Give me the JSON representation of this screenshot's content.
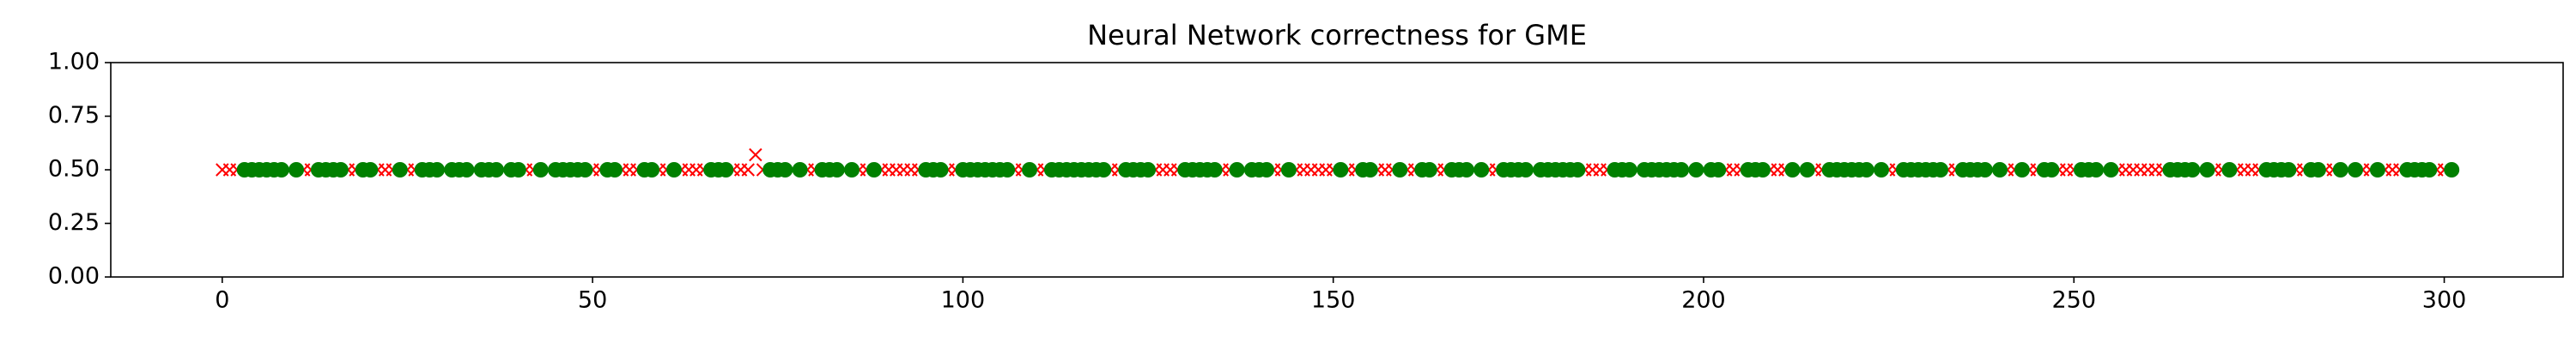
{
  "chart_data": {
    "type": "scatter",
    "title": "Neural Network correctness for GME",
    "xlim": [
      -15.05,
      316.05
    ],
    "ylim": [
      0,
      1
    ],
    "xticks": [
      0,
      50,
      100,
      150,
      200,
      250,
      300
    ],
    "yticks": [
      {
        "value": 0,
        "label": "0.00"
      },
      {
        "value": 0.25,
        "label": "0.25"
      },
      {
        "value": 0.5,
        "label": "0.50"
      },
      {
        "value": 0.75,
        "label": "0.75"
      },
      {
        "value": 1,
        "label": "1.00"
      }
    ],
    "grid": false,
    "series": [
      {
        "color": "red",
        "marker": "x",
        "x": [
          0,
          1,
          2,
          9,
          11,
          12,
          17,
          18,
          21,
          22,
          23,
          25,
          26,
          30,
          34,
          38,
          41,
          42,
          44,
          50,
          51,
          54,
          55,
          56,
          59,
          60,
          62,
          63,
          64,
          65,
          69,
          70,
          71,
          72,
          73,
          77,
          79,
          80,
          84,
          86,
          87,
          89,
          90,
          91,
          92,
          93,
          94,
          98,
          99,
          107,
          108,
          110,
          111,
          120,
          121,
          126,
          127,
          128,
          129,
          135,
          136,
          138,
          142,
          143,
          145,
          146,
          147,
          148,
          149,
          150,
          152,
          153,
          156,
          157,
          158,
          160,
          161,
          164,
          165,
          169,
          171,
          172,
          177,
          184,
          185,
          186,
          187,
          191,
          198,
          200,
          203,
          204,
          205,
          209,
          210,
          211,
          213,
          215,
          216,
          223,
          225,
          226,
          233,
          234,
          239,
          241,
          242,
          244,
          245,
          248,
          249,
          250,
          254,
          256,
          257,
          258,
          259,
          260,
          261,
          262,
          267,
          269,
          270,
          272,
          273,
          274,
          275,
          280,
          281,
          284,
          285,
          287,
          289,
          290,
          292,
          293,
          294,
          299,
          300
        ],
        "values": [
          0.5,
          0.5,
          0.5,
          0.5,
          0.5,
          0.5,
          0.5,
          0.5,
          0.5,
          0.5,
          0.5,
          0.5,
          0.5,
          0.5,
          0.5,
          0.5,
          0.5,
          0.5,
          0.5,
          0.5,
          0.5,
          0.5,
          0.5,
          0.5,
          0.5,
          0.5,
          0.5,
          0.5,
          0.5,
          0.5,
          0.5,
          0.5,
          0.5,
          0.57,
          0.5,
          0.5,
          0.5,
          0.5,
          0.5,
          0.5,
          0.5,
          0.5,
          0.5,
          0.5,
          0.5,
          0.5,
          0.5,
          0.5,
          0.5,
          0.5,
          0.5,
          0.5,
          0.5,
          0.5,
          0.5,
          0.5,
          0.5,
          0.5,
          0.5,
          0.5,
          0.5,
          0.5,
          0.5,
          0.5,
          0.5,
          0.5,
          0.5,
          0.5,
          0.5,
          0.5,
          0.5,
          0.5,
          0.5,
          0.5,
          0.5,
          0.5,
          0.5,
          0.5,
          0.5,
          0.5,
          0.5,
          0.5,
          0.5,
          0.5,
          0.5,
          0.5,
          0.5,
          0.5,
          0.5,
          0.5,
          0.5,
          0.5,
          0.5,
          0.5,
          0.5,
          0.5,
          0.5,
          0.5,
          0.5,
          0.5,
          0.5,
          0.5,
          0.5,
          0.5,
          0.5,
          0.5,
          0.5,
          0.5,
          0.5,
          0.5,
          0.5,
          0.5,
          0.5,
          0.5,
          0.5,
          0.5,
          0.5,
          0.5,
          0.5,
          0.5,
          0.5,
          0.5,
          0.5,
          0.5,
          0.5,
          0.5,
          0.5,
          0.5,
          0.5,
          0.5,
          0.5,
          0.5,
          0.5,
          0.5,
          0.5,
          0.5,
          0.5,
          0.5,
          0.5
        ]
      },
      {
        "color": "green",
        "marker": "o",
        "x": [
          3,
          4,
          5,
          6,
          7,
          8,
          10,
          13,
          14,
          15,
          16,
          19,
          20,
          24,
          27,
          28,
          29,
          31,
          32,
          33,
          35,
          36,
          37,
          39,
          40,
          43,
          45,
          46,
          47,
          48,
          49,
          52,
          53,
          57,
          58,
          61,
          66,
          67,
          68,
          74,
          75,
          76,
          78,
          81,
          82,
          83,
          85,
          88,
          95,
          96,
          97,
          100,
          101,
          102,
          103,
          104,
          105,
          106,
          109,
          112,
          113,
          114,
          115,
          116,
          117,
          118,
          119,
          122,
          123,
          124,
          125,
          130,
          131,
          132,
          133,
          134,
          137,
          139,
          140,
          141,
          144,
          151,
          154,
          155,
          159,
          162,
          163,
          166,
          167,
          168,
          170,
          173,
          174,
          175,
          176,
          178,
          179,
          180,
          181,
          182,
          183,
          188,
          189,
          190,
          192,
          193,
          194,
          195,
          196,
          197,
          199,
          201,
          202,
          206,
          207,
          208,
          212,
          214,
          217,
          218,
          219,
          220,
          221,
          222,
          224,
          227,
          228,
          229,
          230,
          231,
          232,
          235,
          236,
          237,
          238,
          240,
          243,
          246,
          247,
          251,
          252,
          253,
          255,
          263,
          264,
          265,
          266,
          268,
          271,
          276,
          277,
          278,
          279,
          282,
          283,
          286,
          288,
          291,
          295,
          296,
          297,
          298,
          301
        ],
        "values": [
          0.5,
          0.5,
          0.5,
          0.5,
          0.5,
          0.5,
          0.5,
          0.5,
          0.5,
          0.5,
          0.5,
          0.5,
          0.5,
          0.5,
          0.5,
          0.5,
          0.5,
          0.5,
          0.5,
          0.5,
          0.5,
          0.5,
          0.5,
          0.5,
          0.5,
          0.5,
          0.5,
          0.5,
          0.5,
          0.5,
          0.5,
          0.5,
          0.5,
          0.5,
          0.5,
          0.5,
          0.5,
          0.5,
          0.5,
          0.5,
          0.5,
          0.5,
          0.5,
          0.5,
          0.5,
          0.5,
          0.5,
          0.5,
          0.5,
          0.5,
          0.5,
          0.5,
          0.5,
          0.5,
          0.5,
          0.5,
          0.5,
          0.5,
          0.5,
          0.5,
          0.5,
          0.5,
          0.5,
          0.5,
          0.5,
          0.5,
          0.5,
          0.5,
          0.5,
          0.5,
          0.5,
          0.5,
          0.5,
          0.5,
          0.5,
          0.5,
          0.5,
          0.5,
          0.5,
          0.5,
          0.5,
          0.5,
          0.5,
          0.5,
          0.5,
          0.5,
          0.5,
          0.5,
          0.5,
          0.5,
          0.5,
          0.5,
          0.5,
          0.5,
          0.5,
          0.5,
          0.5,
          0.5,
          0.5,
          0.5,
          0.5,
          0.5,
          0.5,
          0.5,
          0.5,
          0.5,
          0.5,
          0.5,
          0.5,
          0.5,
          0.5,
          0.5,
          0.5,
          0.5,
          0.5,
          0.5,
          0.5,
          0.5,
          0.5,
          0.5,
          0.5,
          0.5,
          0.5,
          0.5,
          0.5,
          0.5,
          0.5,
          0.5,
          0.5,
          0.5,
          0.5,
          0.5,
          0.5,
          0.5,
          0.5,
          0.5,
          0.5,
          0.5,
          0.5,
          0.5,
          0.5,
          0.5,
          0.5,
          0.5,
          0.5,
          0.5,
          0.5,
          0.5,
          0.5,
          0.5,
          0.5,
          0.5,
          0.5,
          0.5,
          0.5,
          0.5,
          0.5,
          0.5,
          0.5,
          0.5,
          0.5,
          0.5,
          0.5
        ]
      }
    ]
  }
}
